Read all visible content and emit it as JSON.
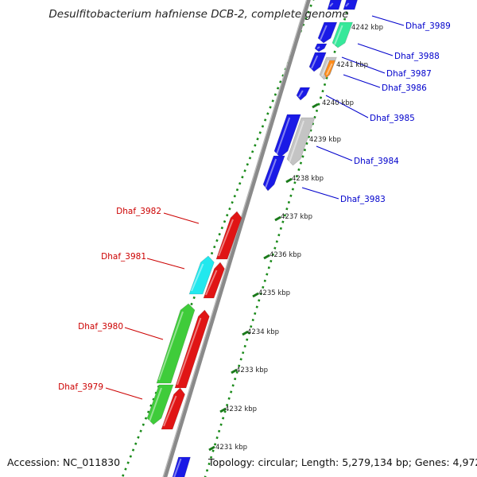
{
  "title": "Desulfitobacterium hafniense DCB-2, complete genome",
  "accession": "Accession: NC_011830",
  "topology": "Topology: circular; Length: 5,279,134 bp; Genes: 4,972",
  "colors": {
    "forward_label": "#0000cc",
    "reverse_label": "#cc0000",
    "ruler_dots": "#1a8a1a",
    "ruler_tick": "#1a7a1a",
    "backbone": "#8a8a8a"
  },
  "kbp_marks": [
    "4231 kbp",
    "4232 kbp",
    "4233 kbp",
    "4234 kbp",
    "4235 kbp",
    "4236 kbp",
    "4237 kbp",
    "4238 kbp",
    "4239 kbp",
    "4240 kbp",
    "4241 kbp",
    "4242 kbp"
  ],
  "forward_genes": [
    "Dhaf_3989",
    "Dhaf_3988",
    "Dhaf_3987",
    "Dhaf_3986",
    "Dhaf_3985",
    "Dhaf_3984",
    "Dhaf_3983"
  ],
  "reverse_genes": [
    "Dhaf_3982",
    "Dhaf_3981",
    "Dhaf_3980",
    "Dhaf_3979"
  ]
}
